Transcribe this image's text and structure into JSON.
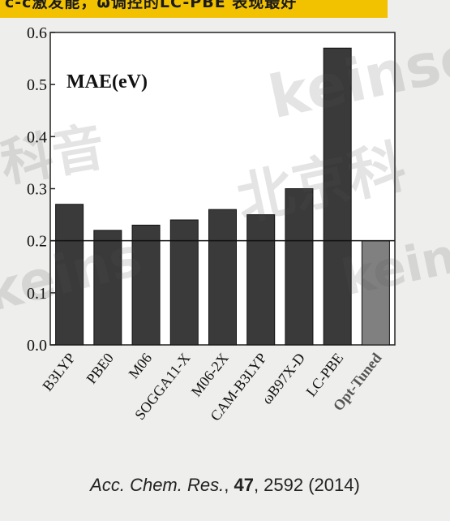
{
  "banner": {
    "text": "c-c激发能，ω调控的LC-PBE 表现最好"
  },
  "chart_data": {
    "type": "bar",
    "title": "MAE(eV)",
    "categories": [
      "B3LYP",
      "PBE0",
      "M06",
      "SOGGA11-X",
      "M06-2X",
      "CAM-B3LYP",
      "ωB97X-D",
      "LC-PBE",
      "Opt-Tuned"
    ],
    "values": [
      0.27,
      0.22,
      0.23,
      0.24,
      0.26,
      0.25,
      0.3,
      0.57,
      0.2
    ],
    "bar_colors": [
      "#3a3a3a",
      "#3a3a3a",
      "#3a3a3a",
      "#3a3a3a",
      "#3a3a3a",
      "#3a3a3a",
      "#3a3a3a",
      "#3a3a3a",
      "#808080"
    ],
    "yticks": [
      "0.0",
      "0.1",
      "0.2",
      "0.3",
      "0.4",
      "0.5",
      "0.6"
    ],
    "ylim": [
      0,
      0.6
    ],
    "reference_line": 0.2,
    "xlabel": "",
    "ylabel": "",
    "grid": false
  },
  "citation": {
    "journal": "Acc. Chem. Res.",
    "volume": "47",
    "pages": "2592 (2014)"
  },
  "watermarks": [
    "keinsci",
    "科音",
    "北京科",
    "keins",
    "keinsci"
  ]
}
